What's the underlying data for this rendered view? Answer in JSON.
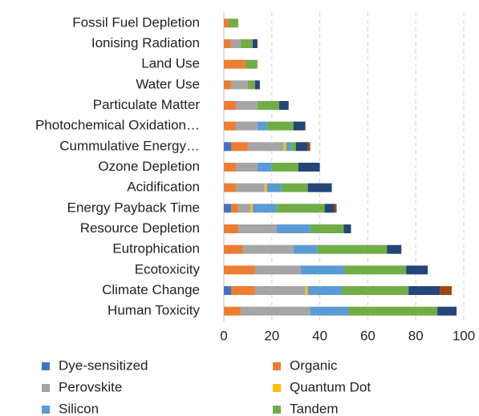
{
  "chart_data": {
    "type": "stacked-barh",
    "categories": [
      "Fossil Fuel Depletion",
      "Ionising Radiation",
      "Land Use",
      "Water Use",
      "Particulate Matter",
      "Photochemical Oxidation…",
      "Cummulative Energy…",
      "Ozone Depletion",
      "Acidification",
      "Energy Payback Time",
      "Resource Depletion",
      "Eutrophication",
      "Ecotoxicity",
      "Climate Change",
      "Human Toxicity"
    ],
    "series": [
      {
        "name": "Dye-sensitized",
        "color": "#4472c4",
        "values": [
          0,
          0,
          0,
          0,
          0,
          0,
          3,
          0,
          0,
          3,
          0,
          0,
          0,
          3,
          0
        ]
      },
      {
        "name": "Organic",
        "color": "#ed7d31",
        "values": [
          2,
          3,
          9,
          3,
          5,
          5,
          7,
          5,
          5,
          3,
          6,
          8,
          13,
          10,
          7
        ]
      },
      {
        "name": "Perovskite",
        "color": "#a5a5a5",
        "values": [
          0,
          4,
          0,
          7,
          9,
          9,
          15,
          9,
          12,
          5,
          16,
          21,
          19,
          21,
          29
        ]
      },
      {
        "name": "Quantum Dot",
        "color": "#ffc000",
        "values": [
          0,
          0,
          0,
          0,
          0,
          0,
          1,
          0,
          1,
          1,
          0,
          0,
          0,
          1,
          0
        ]
      },
      {
        "name": "Silicon",
        "color": "#5b9bd5",
        "values": [
          0,
          0,
          0,
          0,
          0,
          4,
          2,
          6,
          6,
          10,
          14,
          10,
          18,
          14,
          16
        ]
      },
      {
        "name": "Tandem",
        "color": "#70ad47",
        "values": [
          4,
          5,
          5,
          3,
          9,
          11,
          2,
          11,
          11,
          20,
          14,
          29,
          26,
          28,
          37
        ]
      },
      {
        "color": "#264478",
        "values": [
          0,
          2,
          0,
          2,
          4,
          5,
          5,
          9,
          10,
          4,
          3,
          6,
          9,
          13,
          8
        ]
      },
      {
        "color": "#9e480e",
        "values": [
          0,
          0,
          0,
          0,
          0,
          0,
          1,
          0,
          0,
          1,
          0,
          0,
          0,
          5,
          0
        ]
      }
    ],
    "xlim": [
      0,
      100
    ],
    "xticks": [
      0,
      20,
      40,
      60,
      80,
      100
    ],
    "grid": true
  }
}
